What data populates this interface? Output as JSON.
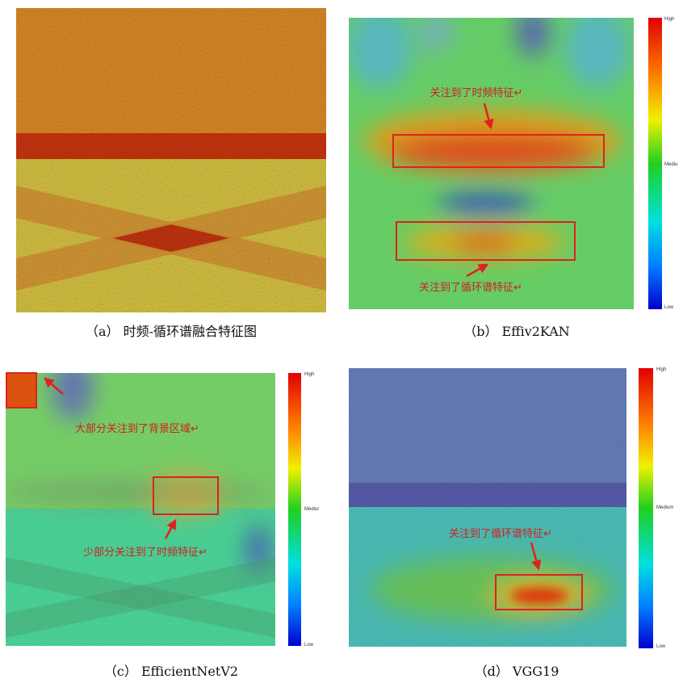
{
  "panels": [
    {
      "caption": "（a） 时频-循环谱融合特征图"
    },
    {
      "caption": "（b） Effiv2KAN",
      "colorbar": [
        "High",
        "Mediu",
        "Low"
      ],
      "annotations": [
        "关注到了时频特征↵",
        "关注到了循环谱特征↵"
      ]
    },
    {
      "caption": "（c） EfficientNetV2",
      "colorbar": [
        "High",
        "Mediur",
        "Low"
      ],
      "annotations": [
        "大部分关注到了背景区域↵",
        "少部分关注到了时频特征↵"
      ]
    },
    {
      "caption": "（d） VGG19",
      "colorbar": [
        "High",
        "Medium",
        "Low"
      ],
      "annotations": [
        "关注到了循环谱特征↵"
      ]
    }
  ]
}
